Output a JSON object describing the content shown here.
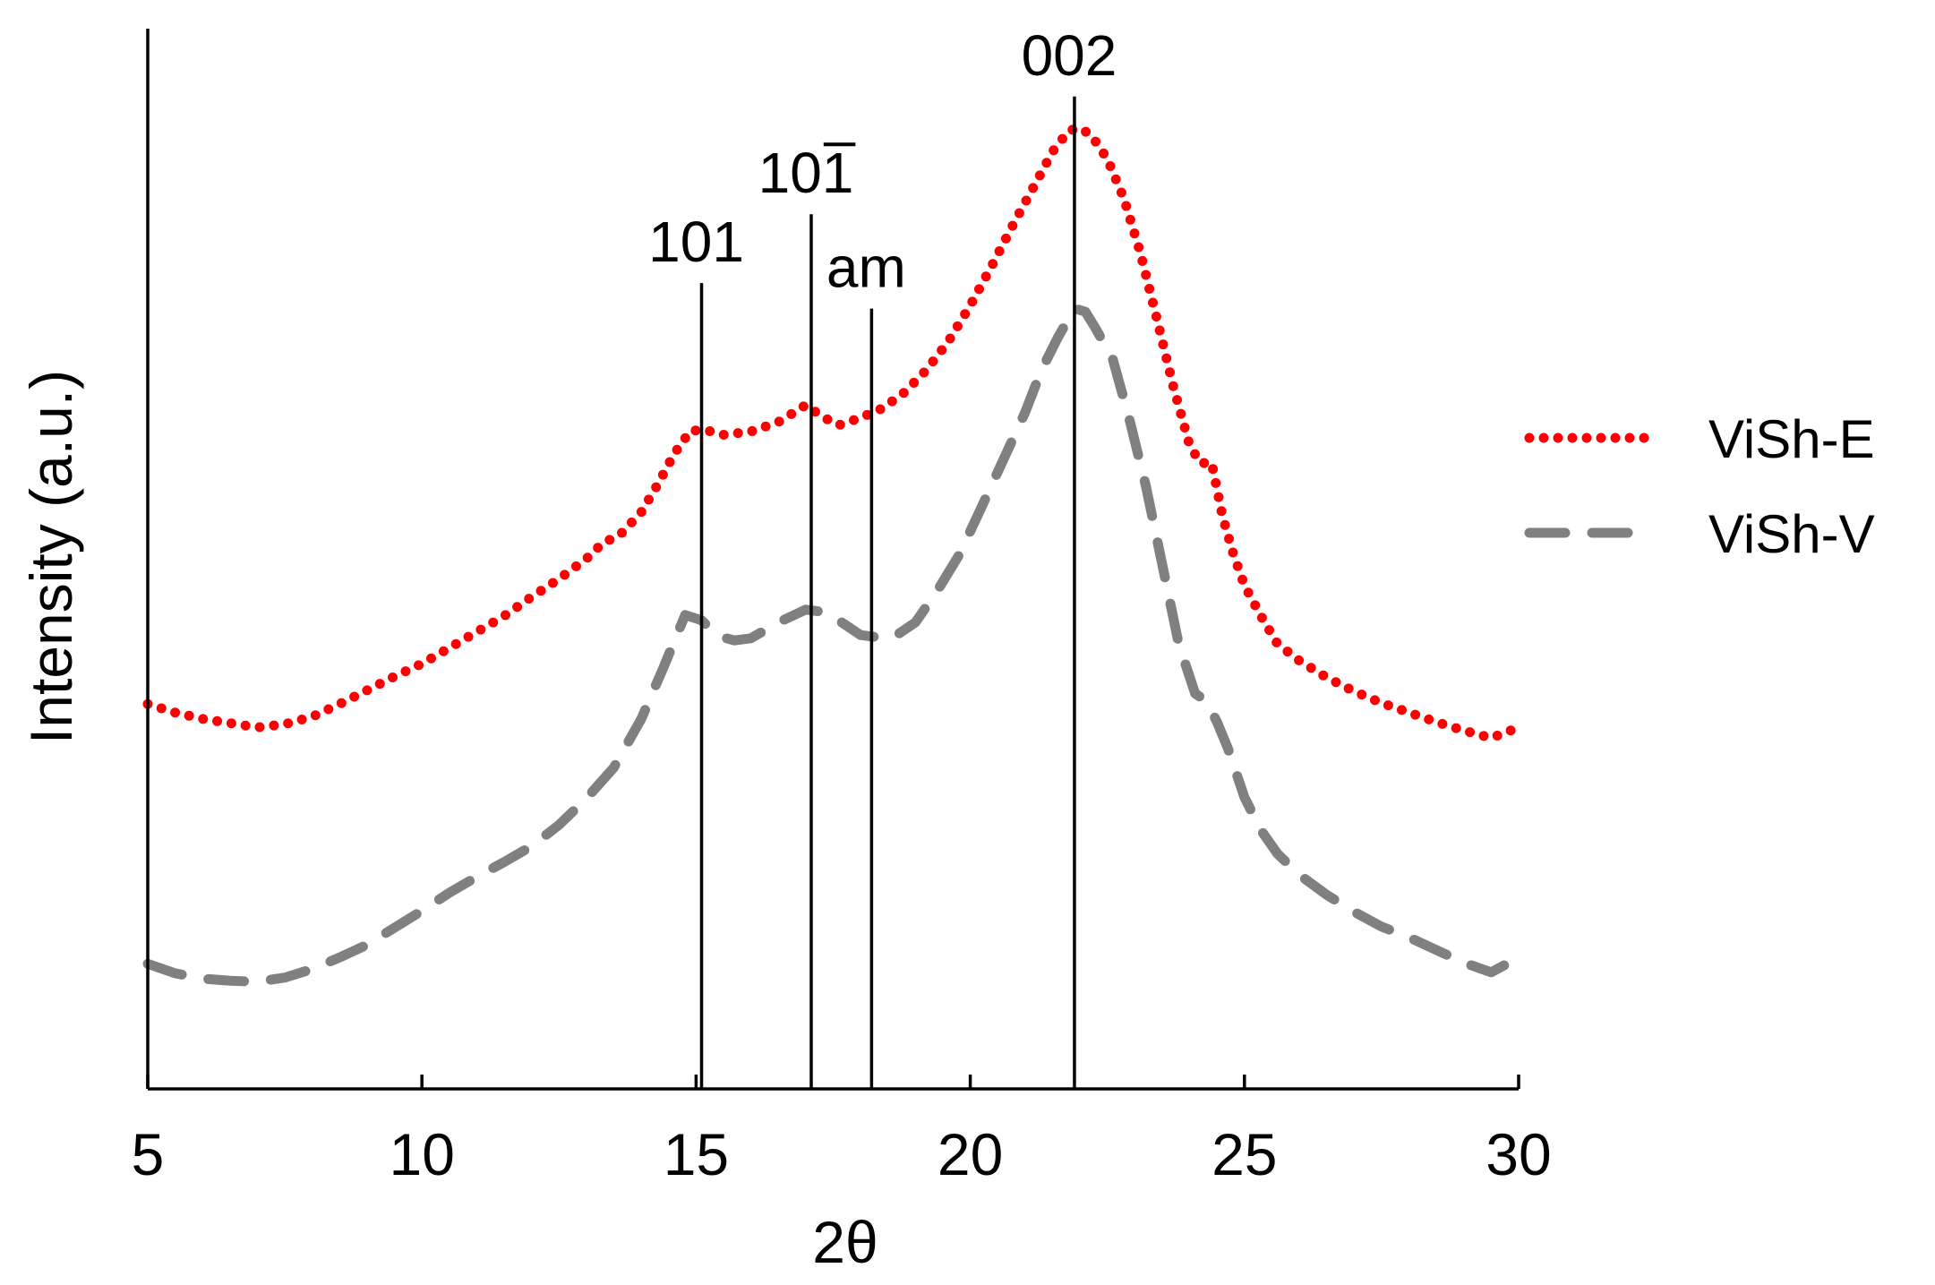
{
  "chart_data": {
    "type": "line",
    "xlabel": "2θ",
    "ylabel": "Intensity (a.u.)",
    "xlim": [
      5,
      30
    ],
    "ylim": [
      0,
      100
    ],
    "x_ticks": [
      "5",
      "10",
      "15",
      "20",
      "25",
      "30"
    ],
    "x_tick_values": [
      5,
      10,
      15,
      20,
      25,
      30
    ],
    "y_ticks_shown": false,
    "grid": false,
    "legend_position": "right",
    "series": [
      {
        "name": "ViSh-E",
        "color": "#ff0000",
        "line_style": "dotted",
        "x": [
          5.0,
          5.5,
          6.0,
          6.5,
          7.0,
          7.5,
          8.0,
          8.5,
          9.0,
          9.5,
          10.0,
          10.5,
          11.0,
          11.5,
          12.0,
          12.5,
          13.0,
          13.3,
          13.6,
          14.0,
          14.3,
          14.6,
          14.9,
          15.2,
          15.5,
          16.0,
          16.5,
          17.0,
          17.3,
          17.6,
          18.0,
          18.4,
          18.8,
          19.2,
          19.6,
          20.0,
          20.4,
          20.8,
          21.2,
          21.5,
          21.8,
          22.0,
          22.2,
          22.5,
          22.8,
          23.1,
          23.4,
          23.7,
          24.0,
          24.2,
          24.4,
          24.6,
          24.8,
          25.0,
          25.3,
          25.6,
          26.0,
          26.5,
          27.0,
          27.5,
          28.0,
          28.5,
          29.0,
          29.5,
          30.0
        ],
        "values": [
          36.3,
          35.5,
          34.9,
          34.5,
          34.1,
          34.4,
          35.1,
          36.3,
          37.6,
          38.9,
          40.1,
          41.6,
          43.1,
          44.6,
          46.4,
          48.1,
          50.0,
          51.5,
          52.2,
          54.4,
          57.0,
          59.9,
          62.1,
          62.1,
          61.7,
          62.0,
          62.9,
          64.5,
          63.4,
          62.6,
          63.3,
          64.2,
          65.7,
          67.8,
          70.5,
          73.9,
          77.7,
          81.7,
          85.5,
          88.4,
          90.4,
          90.6,
          90.0,
          87.7,
          84.0,
          78.9,
          72.7,
          66.3,
          60.7,
          59.0,
          59.1,
          54.0,
          50.4,
          47.5,
          44.6,
          42.0,
          40.4,
          38.8,
          37.5,
          36.4,
          35.5,
          34.6,
          33.8,
          33.1,
          34.1
        ]
      },
      {
        "name": "ViSh-V",
        "color": "#808080",
        "line_style": "dashed",
        "x": [
          5.0,
          5.5,
          6.0,
          6.5,
          7.0,
          7.5,
          8.0,
          8.5,
          9.0,
          9.5,
          10.0,
          10.5,
          11.0,
          11.5,
          12.0,
          12.5,
          13.0,
          13.5,
          14.0,
          14.4,
          14.8,
          15.1,
          15.4,
          15.7,
          16.0,
          16.5,
          17.0,
          17.3,
          17.6,
          18.0,
          18.3,
          18.6,
          19.0,
          19.4,
          19.8,
          20.2,
          20.6,
          21.0,
          21.3,
          21.6,
          21.9,
          22.1,
          22.3,
          22.6,
          22.9,
          23.2,
          23.5,
          23.8,
          24.1,
          24.3,
          24.5,
          24.7,
          25.0,
          25.3,
          25.6,
          26.0,
          26.5,
          27.0,
          27.5,
          28.0,
          28.5,
          29.0,
          29.5,
          30.0
        ],
        "values": [
          11.8,
          10.9,
          10.4,
          10.2,
          10.1,
          10.5,
          11.3,
          12.4,
          13.6,
          15.2,
          16.8,
          18.5,
          20.0,
          21.4,
          22.9,
          24.9,
          27.4,
          30.3,
          34.9,
          39.7,
          44.7,
          44.2,
          42.7,
          42.3,
          42.5,
          44.0,
          45.2,
          45.0,
          44.2,
          42.8,
          42.6,
          42.6,
          44.0,
          47.0,
          50.4,
          54.8,
          59.3,
          63.8,
          67.8,
          70.9,
          73.6,
          73.3,
          71.6,
          68.8,
          63.2,
          56.9,
          49.5,
          42.0,
          37.3,
          36.6,
          34.6,
          32.1,
          27.5,
          24.4,
          22.2,
          20.2,
          18.3,
          16.7,
          15.3,
          14.3,
          13.1,
          11.9,
          11.0,
          12.4
        ]
      }
    ],
    "reference_lines": [
      {
        "x": 15.1,
        "label": "101",
        "height": 76
      },
      {
        "x": 17.1,
        "label": "10",
        "label_bar": "1",
        "height": 82.5
      },
      {
        "x": 18.2,
        "label": "am",
        "height": 73.6
      },
      {
        "x": 21.9,
        "label": "002",
        "height": 93.6
      }
    ]
  }
}
